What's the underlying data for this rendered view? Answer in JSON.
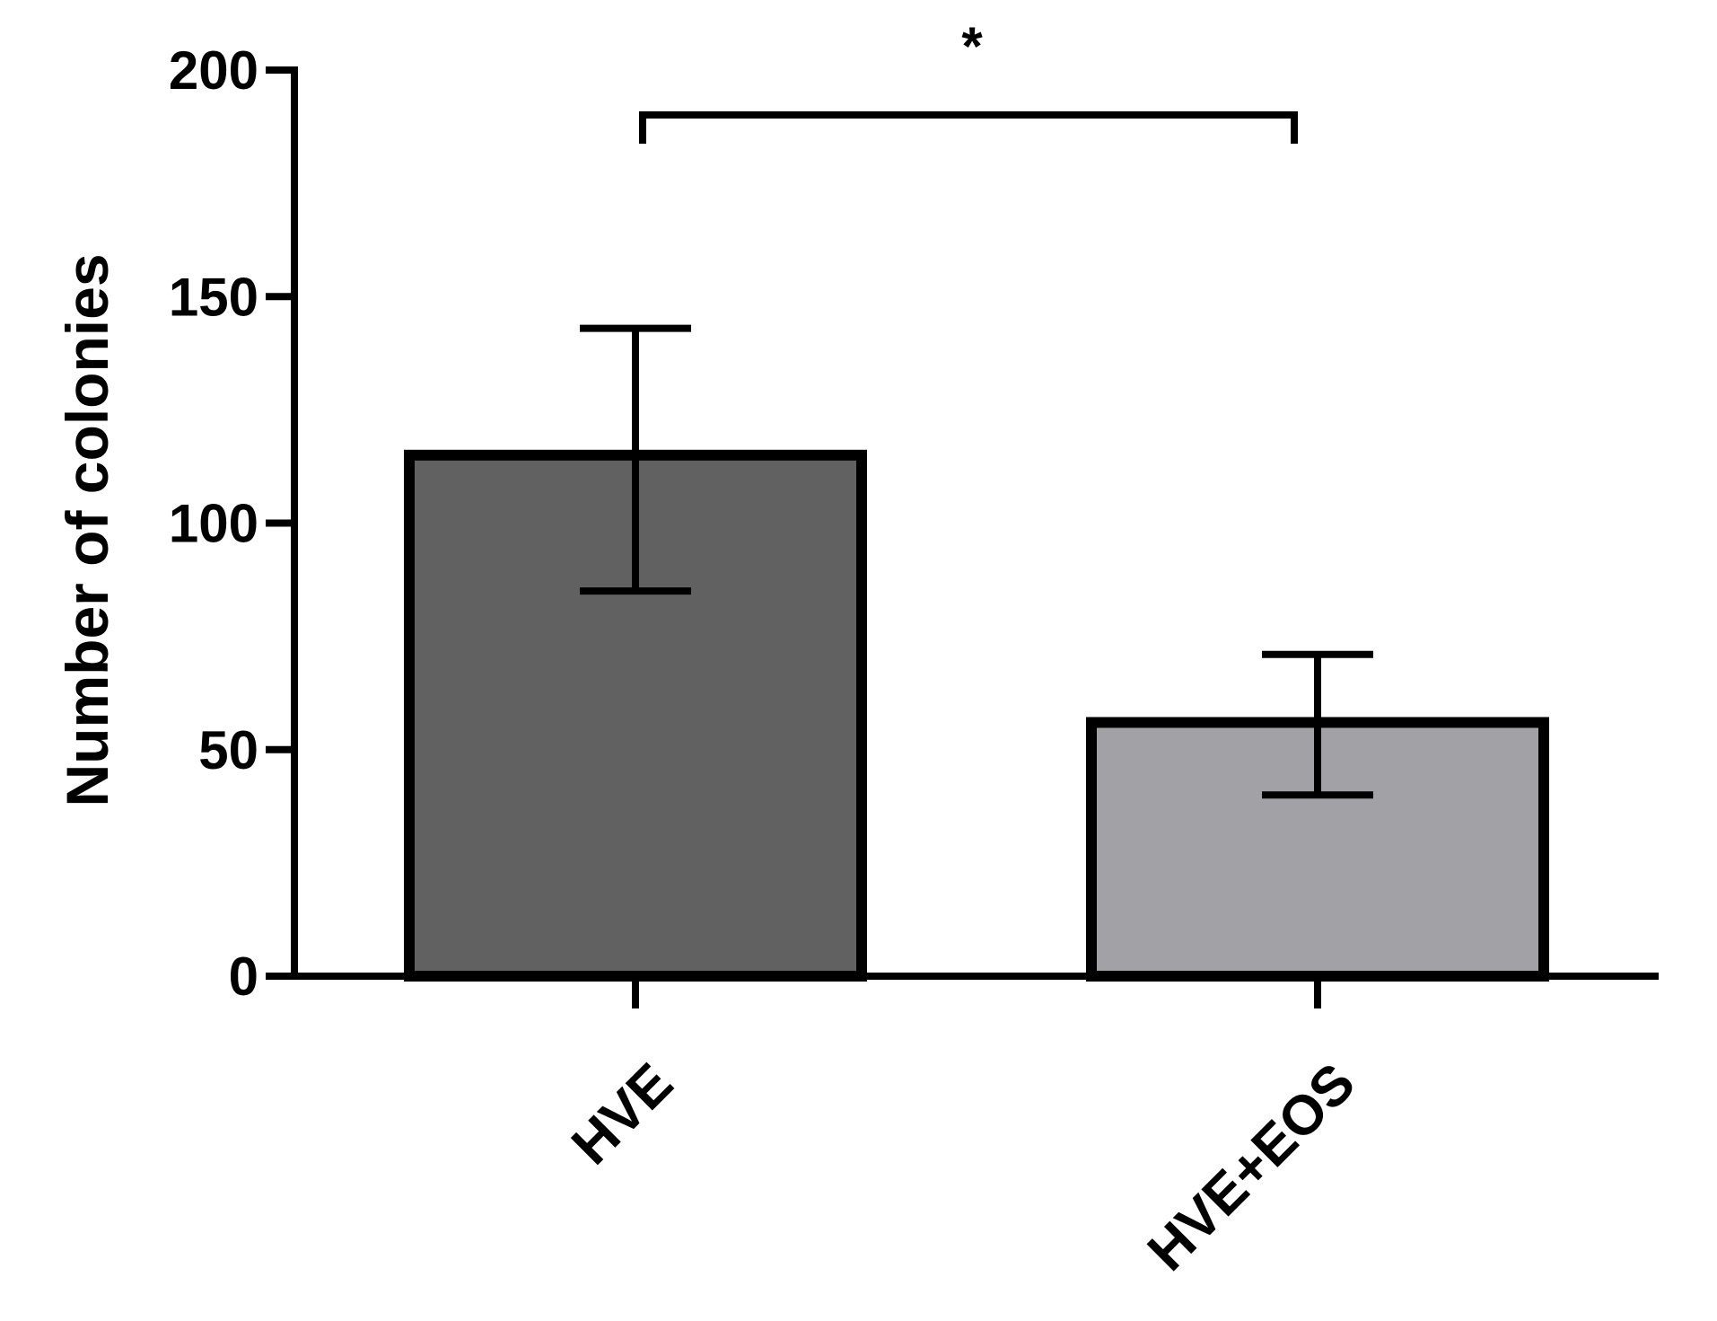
{
  "chart_data": {
    "type": "bar",
    "title": "",
    "xlabel": "",
    "ylabel": "Number of colonies",
    "ylim": [
      0,
      200
    ],
    "yticks": [
      0,
      50,
      100,
      150,
      200
    ],
    "grid": false,
    "legend": "none",
    "categories": [
      "HVE",
      "HVE+EOS"
    ],
    "values": [
      115,
      56
    ],
    "error_upper": [
      143,
      71
    ],
    "error_lower": [
      85,
      40
    ],
    "bar_colors": [
      "#616161",
      "#a2a1a6"
    ],
    "significance": {
      "between": [
        0,
        1
      ],
      "label": "*"
    }
  }
}
